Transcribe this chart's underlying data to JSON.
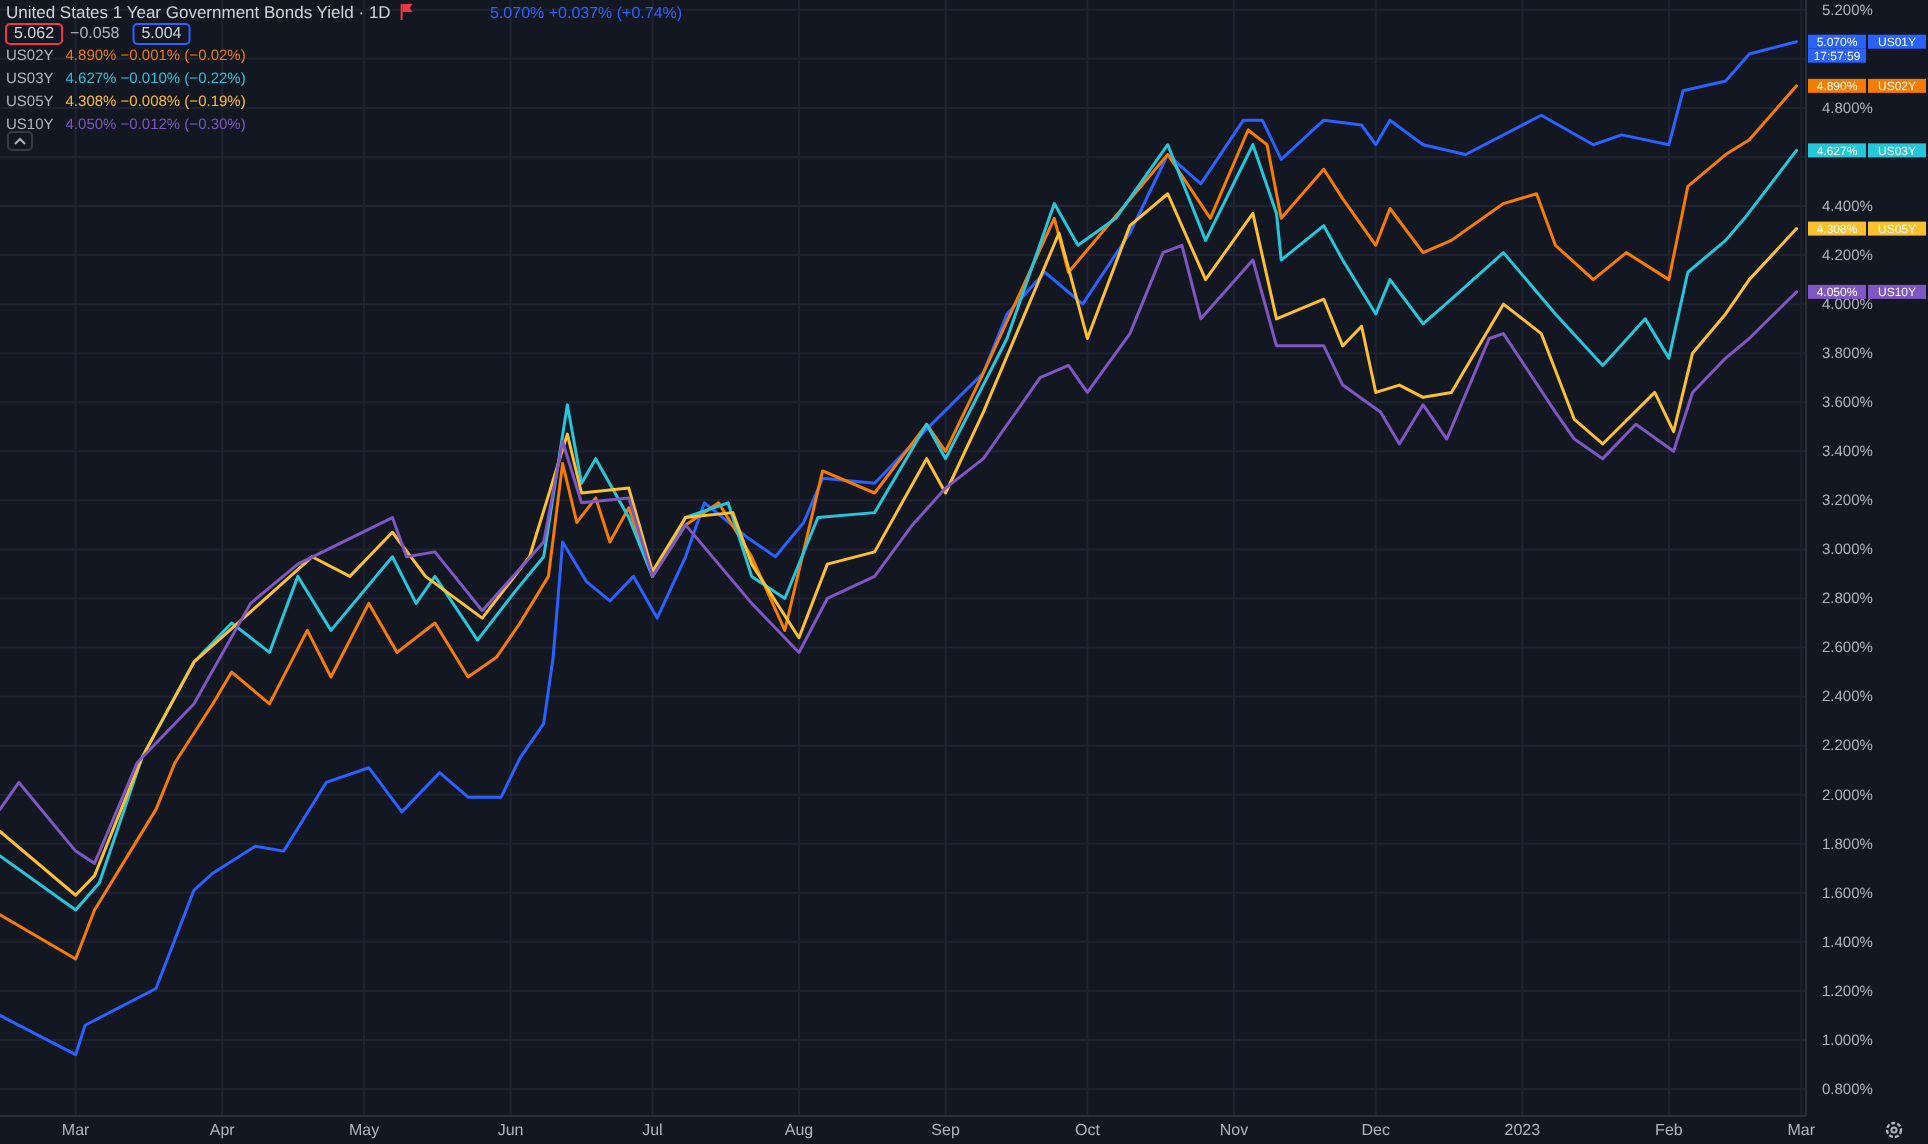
{
  "chart_data": {
    "type": "line",
    "title": "United States 1 Year Government Bonds Yield · 1D",
    "annotations": [
      "5.062",
      "−0.058",
      "5.004",
      "5.070% +0.037% (+0.74%)",
      "4.890% −0.001% (−0.02%)",
      "4.627% −0.010% (−0.22%)",
      "4.308% −0.008% (−0.19%)",
      "4.050% −0.012% (−0.30%)",
      "17:57:59"
    ],
    "xlim": [
      "2022-02-13",
      "2023-03-02"
    ],
    "xticks": [
      {
        "value": "2022-03-01",
        "label": "Mar"
      },
      {
        "value": "2022-04-01",
        "label": "Apr"
      },
      {
        "value": "2022-05-01",
        "label": "May"
      },
      {
        "value": "2022-06-01",
        "label": "Jun"
      },
      {
        "value": "2022-07-01",
        "label": "Jul"
      },
      {
        "value": "2022-08-01",
        "label": "Aug"
      },
      {
        "value": "2022-09-01",
        "label": "Sep"
      },
      {
        "value": "2022-10-01",
        "label": "Oct"
      },
      {
        "value": "2022-11-01",
        "label": "Nov"
      },
      {
        "value": "2022-12-01",
        "label": "Dec"
      },
      {
        "value": "2023-01-01",
        "label": "2023"
      },
      {
        "value": "2023-02-01",
        "label": "Feb"
      },
      {
        "value": "2023-03-01",
        "label": "Mar"
      }
    ],
    "ylim": [
      0.69,
      5.24
    ],
    "yticks": [
      {
        "value": 0.8,
        "label": "0.800%"
      },
      {
        "value": 1.0,
        "label": "1.000%"
      },
      {
        "value": 1.2,
        "label": "1.200%"
      },
      {
        "value": 1.4,
        "label": "1.400%"
      },
      {
        "value": 1.6,
        "label": "1.600%"
      },
      {
        "value": 1.8,
        "label": "1.800%"
      },
      {
        "value": 2.0,
        "label": "2.000%"
      },
      {
        "value": 2.2,
        "label": "2.200%"
      },
      {
        "value": 2.4,
        "label": "2.400%"
      },
      {
        "value": 2.6,
        "label": "2.600%"
      },
      {
        "value": 2.8,
        "label": "2.800%"
      },
      {
        "value": 3.0,
        "label": "3.000%"
      },
      {
        "value": 3.2,
        "label": "3.200%"
      },
      {
        "value": 3.4,
        "label": "3.400%"
      },
      {
        "value": 3.6,
        "label": "3.600%"
      },
      {
        "value": 3.8,
        "label": "3.800%"
      },
      {
        "value": 4.0,
        "label": "4.000%"
      },
      {
        "value": 4.2,
        "label": "4.200%"
      },
      {
        "value": 4.4,
        "label": "4.400%"
      },
      {
        "value": 4.6,
        "label": null
      },
      {
        "value": 4.8,
        "label": "4.800%"
      },
      {
        "value": 5.0,
        "label": null
      },
      {
        "value": 5.2,
        "label": "5.200%"
      }
    ],
    "grid": true,
    "legend": "right",
    "line_style": "solid",
    "series": [
      {
        "name": "US01Y",
        "color": "#2962ff",
        "x": [
          "2022-02-13",
          "2022-03-01",
          "2022-03-03",
          "2022-03-18",
          "2022-03-26",
          "2022-03-30",
          "2022-04-08",
          "2022-04-14",
          "2022-04-23",
          "2022-05-02",
          "2022-05-09",
          "2022-05-17",
          "2022-05-23",
          "2022-05-30",
          "2022-06-03",
          "2022-06-08",
          "2022-06-10",
          "2022-06-12",
          "2022-06-17",
          "2022-06-22",
          "2022-06-27",
          "2022-07-02",
          "2022-07-08",
          "2022-07-12",
          "2022-07-21",
          "2022-07-27",
          "2022-08-02",
          "2022-08-06",
          "2022-08-17",
          "2022-08-29",
          "2022-09-09",
          "2022-09-14",
          "2022-09-22",
          "2022-09-30",
          "2022-10-10",
          "2022-10-18",
          "2022-10-25",
          "2022-11-03",
          "2022-11-07",
          "2022-11-11",
          "2022-11-20",
          "2022-11-28",
          "2022-12-01",
          "2022-12-04",
          "2022-12-11",
          "2022-12-20",
          "2023-01-01",
          "2023-01-05",
          "2023-01-16",
          "2023-01-22",
          "2023-02-01",
          "2023-02-04",
          "2023-02-13",
          "2023-02-18",
          "2023-02-28"
        ],
        "values": [
          1.1,
          0.94,
          1.06,
          1.21,
          1.61,
          1.68,
          1.79,
          1.77,
          2.05,
          2.11,
          1.93,
          2.09,
          1.99,
          1.99,
          2.15,
          2.29,
          2.56,
          3.03,
          2.87,
          2.79,
          2.89,
          2.72,
          2.97,
          3.19,
          3.05,
          2.97,
          3.11,
          3.29,
          3.27,
          3.51,
          3.72,
          3.96,
          4.13,
          4.0,
          4.29,
          4.61,
          4.49,
          4.75,
          4.75,
          4.59,
          4.75,
          4.73,
          4.65,
          4.75,
          4.65,
          4.61,
          4.73,
          4.77,
          4.65,
          4.69,
          4.65,
          4.87,
          4.91,
          5.02,
          5.07
        ],
        "value_labels": [
          null,
          null,
          null,
          null,
          null,
          null,
          null,
          null,
          null,
          null,
          null,
          null,
          null,
          null,
          null,
          null,
          null,
          null,
          null,
          null,
          null,
          null,
          null,
          null,
          null,
          null,
          null,
          null,
          null,
          null,
          null,
          null,
          null,
          null,
          null,
          null,
          null,
          null,
          null,
          null,
          null,
          null,
          null,
          null,
          null,
          null,
          null,
          null,
          null,
          null,
          null,
          null,
          null,
          null,
          "5.070%"
        ]
      },
      {
        "name": "US02Y",
        "color": "#f57c00",
        "x": [
          "2022-02-13",
          "2022-03-01",
          "2022-03-05",
          "2022-03-18",
          "2022-03-22",
          "2022-03-30",
          "2022-04-03",
          "2022-04-11",
          "2022-04-19",
          "2022-04-24",
          "2022-05-02",
          "2022-05-08",
          "2022-05-16",
          "2022-05-23",
          "2022-05-29",
          "2022-06-03",
          "2022-06-09",
          "2022-06-12",
          "2022-06-15",
          "2022-06-19",
          "2022-06-22",
          "2022-06-26",
          "2022-07-01",
          "2022-07-08",
          "2022-07-15",
          "2022-07-22",
          "2022-07-29",
          "2022-08-06",
          "2022-08-17",
          "2022-08-28",
          "2022-09-01",
          "2022-09-09",
          "2022-09-24",
          "2022-09-27",
          "2022-10-04",
          "2022-10-18",
          "2022-10-27",
          "2022-11-04",
          "2022-11-08",
          "2022-11-11",
          "2022-11-20",
          "2022-11-24",
          "2022-12-01",
          "2022-12-04",
          "2022-12-11",
          "2022-12-17",
          "2022-12-28",
          "2023-01-04",
          "2023-01-08",
          "2023-01-16",
          "2023-01-23",
          "2023-02-01",
          "2023-02-05",
          "2023-02-13",
          "2023-02-18",
          "2023-02-28"
        ],
        "values": [
          1.51,
          1.33,
          1.53,
          1.94,
          2.13,
          2.37,
          2.5,
          2.37,
          2.67,
          2.48,
          2.78,
          2.58,
          2.7,
          2.48,
          2.56,
          2.7,
          2.89,
          3.35,
          3.11,
          3.21,
          3.03,
          3.17,
          2.89,
          3.1,
          3.19,
          2.97,
          2.67,
          3.32,
          3.23,
          3.51,
          3.4,
          3.72,
          4.35,
          4.13,
          4.29,
          4.61,
          4.35,
          4.71,
          4.65,
          4.35,
          4.55,
          4.43,
          4.24,
          4.39,
          4.21,
          4.26,
          4.41,
          4.45,
          4.24,
          4.1,
          4.21,
          4.1,
          4.48,
          4.61,
          4.67,
          4.89
        ],
        "value_labels": [
          null,
          null,
          null,
          null,
          null,
          null,
          null,
          null,
          null,
          null,
          null,
          null,
          null,
          null,
          null,
          null,
          null,
          null,
          null,
          null,
          null,
          null,
          null,
          null,
          null,
          null,
          null,
          null,
          null,
          null,
          null,
          null,
          null,
          null,
          null,
          null,
          null,
          null,
          null,
          null,
          null,
          null,
          null,
          null,
          null,
          null,
          null,
          null,
          null,
          null,
          null,
          null,
          null,
          null,
          null,
          "4.890%"
        ]
      },
      {
        "name": "US03Y",
        "color": "#26c6da",
        "x": [
          "2022-02-13",
          "2022-03-01",
          "2022-03-06",
          "2022-03-15",
          "2022-03-26",
          "2022-04-03",
          "2022-04-11",
          "2022-04-17",
          "2022-04-24",
          "2022-05-07",
          "2022-05-12",
          "2022-05-16",
          "2022-05-25",
          "2022-06-02",
          "2022-06-08",
          "2022-06-13",
          "2022-06-16",
          "2022-06-19",
          "2022-06-26",
          "2022-07-01",
          "2022-07-08",
          "2022-07-17",
          "2022-07-22",
          "2022-07-29",
          "2022-08-05",
          "2022-08-17",
          "2022-08-28",
          "2022-09-01",
          "2022-09-14",
          "2022-09-24",
          "2022-09-29",
          "2022-10-07",
          "2022-10-18",
          "2022-10-26",
          "2022-11-05",
          "2022-11-10",
          "2022-11-11",
          "2022-11-20",
          "2022-11-24",
          "2022-12-01",
          "2022-12-04",
          "2022-12-11",
          "2022-12-17",
          "2022-12-28",
          "2023-01-08",
          "2023-01-18",
          "2023-01-27",
          "2023-02-01",
          "2023-02-05",
          "2023-02-13",
          "2023-02-17",
          "2023-02-28"
        ],
        "values": [
          1.75,
          1.53,
          1.64,
          2.15,
          2.54,
          2.7,
          2.58,
          2.89,
          2.67,
          2.97,
          2.78,
          2.89,
          2.63,
          2.83,
          2.97,
          3.59,
          3.27,
          3.37,
          3.13,
          2.89,
          3.13,
          3.19,
          2.89,
          2.8,
          3.13,
          3.15,
          3.51,
          3.37,
          3.86,
          4.41,
          4.24,
          4.35,
          4.65,
          4.26,
          4.65,
          4.37,
          4.18,
          4.32,
          4.18,
          3.96,
          4.1,
          3.92,
          4.02,
          4.21,
          3.96,
          3.75,
          3.94,
          3.78,
          4.13,
          4.26,
          4.35,
          4.627
        ],
        "value_labels": [
          null,
          null,
          null,
          null,
          null,
          null,
          null,
          null,
          null,
          null,
          null,
          null,
          null,
          null,
          null,
          null,
          null,
          null,
          null,
          null,
          null,
          null,
          null,
          null,
          null,
          null,
          null,
          null,
          null,
          null,
          null,
          null,
          null,
          null,
          null,
          null,
          null,
          null,
          null,
          null,
          null,
          null,
          null,
          null,
          null,
          null,
          null,
          null,
          null,
          null,
          null,
          "4.627%"
        ]
      },
      {
        "name": "US05Y",
        "color": "#fbc02d",
        "x": [
          "2022-02-13",
          "2022-03-01",
          "2022-03-05",
          "2022-03-15",
          "2022-03-26",
          "2022-04-09",
          "2022-04-20",
          "2022-04-28",
          "2022-05-07",
          "2022-05-14",
          "2022-05-26",
          "2022-06-05",
          "2022-06-13",
          "2022-06-16",
          "2022-06-26",
          "2022-07-01",
          "2022-07-08",
          "2022-07-18",
          "2022-07-22",
          "2022-08-01",
          "2022-08-07",
          "2022-08-17",
          "2022-08-28",
          "2022-09-01",
          "2022-09-09",
          "2022-09-25",
          "2022-10-01",
          "2022-10-10",
          "2022-10-18",
          "2022-10-26",
          "2022-11-05",
          "2022-11-10",
          "2022-11-20",
          "2022-11-24",
          "2022-11-28",
          "2022-12-01",
          "2022-12-06",
          "2022-12-11",
          "2022-12-17",
          "2022-12-28",
          "2023-01-05",
          "2023-01-12",
          "2023-01-18",
          "2023-01-29",
          "2023-02-02",
          "2023-02-06",
          "2023-02-13",
          "2023-02-18",
          "2023-02-28"
        ],
        "values": [
          1.85,
          1.59,
          1.67,
          2.15,
          2.54,
          2.78,
          2.97,
          2.89,
          3.07,
          2.89,
          2.72,
          2.97,
          3.47,
          3.23,
          3.25,
          2.91,
          3.13,
          3.15,
          2.94,
          2.64,
          2.94,
          2.99,
          3.37,
          3.23,
          3.56,
          4.29,
          3.86,
          4.32,
          4.45,
          4.1,
          4.37,
          3.94,
          4.02,
          3.83,
          3.91,
          3.64,
          3.67,
          3.62,
          3.64,
          4.0,
          3.88,
          3.53,
          3.43,
          3.64,
          3.48,
          3.8,
          3.96,
          4.1,
          4.308
        ],
        "value_labels": [
          null,
          null,
          null,
          null,
          null,
          null,
          null,
          null,
          null,
          null,
          null,
          null,
          null,
          null,
          null,
          null,
          null,
          null,
          null,
          null,
          null,
          null,
          null,
          null,
          null,
          null,
          null,
          null,
          null,
          null,
          null,
          null,
          null,
          null,
          null,
          null,
          null,
          null,
          null,
          null,
          null,
          null,
          null,
          null,
          null,
          null,
          null,
          null,
          "4.308%"
        ]
      },
      {
        "name": "US10Y",
        "color": "#7e57c2",
        "x": [
          "2022-02-13",
          "2022-02-17",
          "2022-03-01",
          "2022-03-05",
          "2022-03-14",
          "2022-03-26",
          "2022-04-07",
          "2022-04-17",
          "2022-05-07",
          "2022-05-10",
          "2022-05-16",
          "2022-05-26",
          "2022-06-08",
          "2022-06-12",
          "2022-06-16",
          "2022-06-26",
          "2022-07-01",
          "2022-07-08",
          "2022-07-15",
          "2022-07-22",
          "2022-08-01",
          "2022-08-07",
          "2022-08-17",
          "2022-08-25",
          "2022-09-01",
          "2022-09-09",
          "2022-09-21",
          "2022-09-27",
          "2022-10-01",
          "2022-10-10",
          "2022-10-17",
          "2022-10-21",
          "2022-10-25",
          "2022-11-05",
          "2022-11-10",
          "2022-11-20",
          "2022-11-24",
          "2022-12-02",
          "2022-12-06",
          "2022-12-11",
          "2022-12-16",
          "2022-12-25",
          "2022-12-28",
          "2023-01-08",
          "2023-01-12",
          "2023-01-18",
          "2023-01-25",
          "2023-02-02",
          "2023-02-06",
          "2023-02-13",
          "2023-02-18",
          "2023-02-28"
        ],
        "values": [
          1.94,
          2.05,
          1.77,
          1.72,
          2.13,
          2.37,
          2.78,
          2.94,
          3.13,
          2.97,
          2.99,
          2.75,
          3.03,
          3.44,
          3.19,
          3.21,
          2.89,
          3.1,
          2.94,
          2.78,
          2.58,
          2.8,
          2.89,
          3.1,
          3.25,
          3.37,
          3.7,
          3.75,
          3.64,
          3.88,
          4.21,
          4.24,
          3.94,
          4.18,
          3.83,
          3.83,
          3.67,
          3.56,
          3.43,
          3.59,
          3.45,
          3.86,
          3.88,
          3.56,
          3.45,
          3.37,
          3.51,
          3.4,
          3.64,
          3.78,
          3.86,
          4.05
        ],
        "value_labels": [
          null,
          null,
          null,
          null,
          null,
          null,
          null,
          null,
          null,
          null,
          null,
          null,
          null,
          null,
          null,
          null,
          null,
          null,
          null,
          null,
          null,
          null,
          null,
          null,
          null,
          null,
          null,
          null,
          null,
          null,
          null,
          null,
          null,
          null,
          null,
          null,
          null,
          null,
          null,
          null,
          null,
          null,
          null,
          null,
          null,
          null,
          null,
          null,
          null,
          null,
          null,
          "4.050%"
        ]
      }
    ]
  }
}
